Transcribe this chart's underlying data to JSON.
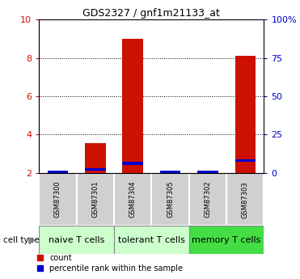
{
  "title": "GDS2327 / gnf1m21133_at",
  "samples": [
    "GSM87300",
    "GSM87301",
    "GSM87304",
    "GSM87305",
    "GSM87302",
    "GSM87303"
  ],
  "count_values": [
    2.0,
    3.55,
    9.0,
    2.0,
    2.0,
    8.1
  ],
  "percentile_values": [
    2.05,
    2.2,
    2.5,
    2.05,
    2.05,
    2.65
  ],
  "groups": [
    {
      "label": "naive T cells",
      "start": 0,
      "end": 2,
      "color": "#ccffcc"
    },
    {
      "label": "tolerant T cells",
      "start": 2,
      "end": 4,
      "color": "#ccffcc"
    },
    {
      "label": "memory T cells",
      "start": 4,
      "end": 6,
      "color": "#44dd44"
    }
  ],
  "ylim_min": 2.0,
  "ylim_max": 10.0,
  "yticks": [
    2,
    4,
    6,
    8,
    10
  ],
  "y2ticks": [
    0,
    25,
    50,
    75,
    100
  ],
  "y2tick_labels": [
    "0",
    "25",
    "50",
    "75",
    "100%"
  ],
  "bar_color": "#cc1100",
  "percentile_color": "#0000cc",
  "bar_width": 0.55,
  "tick_label_color_left": "#cc1100",
  "tick_label_color_right": "#0000cc",
  "cell_type_label": "cell type",
  "legend_count_label": "count",
  "legend_percentile_label": "percentile rank within the sample",
  "sample_box_color": "#d0d0d0",
  "title_fontsize": 9,
  "tick_fontsize": 8,
  "sample_fontsize": 6,
  "group_fontsize": 8,
  "legend_fontsize": 7
}
